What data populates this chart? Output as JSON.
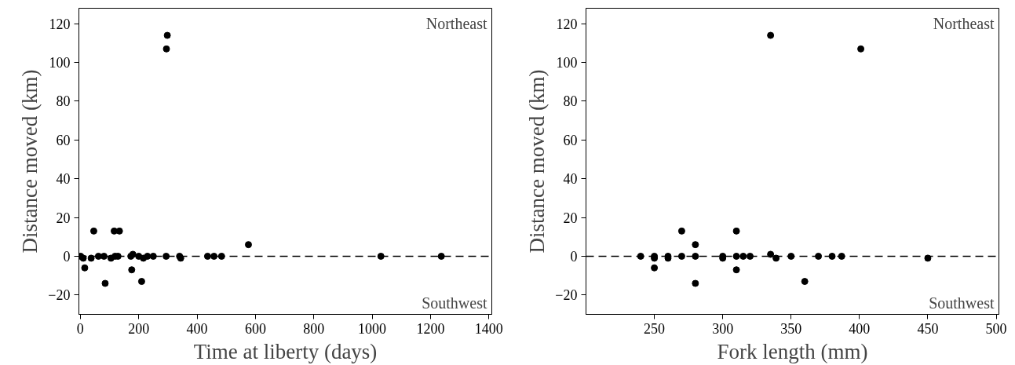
{
  "chart_data": [
    {
      "type": "scatter",
      "xlabel": "Time at liberty (days)",
      "ylabel": "Distance moved (km)",
      "x": [
        1,
        10,
        15,
        37,
        46,
        62,
        81,
        105,
        119,
        129,
        85,
        116,
        134,
        173,
        180,
        176,
        200,
        210,
        216,
        230,
        250,
        294,
        298,
        295,
        340,
        344,
        436,
        458,
        484,
        576,
        1030,
        1237
      ],
      "values": [
        0,
        -1,
        -6,
        -1,
        13,
        0,
        0,
        -1,
        0,
        0,
        -14,
        13,
        13,
        0,
        1,
        -7,
        0,
        -13,
        -1,
        0,
        0,
        0,
        114,
        107,
        0,
        -1,
        0,
        0,
        0,
        6,
        0,
        0
      ],
      "color": "#000000",
      "marker": "circle",
      "grid": false,
      "xlim": [
        -5,
        1410
      ],
      "ylim": [
        -30,
        128
      ],
      "xticks": [
        0,
        200,
        400,
        600,
        800,
        1000,
        1200,
        1400
      ],
      "yticks": [
        -20,
        0,
        20,
        40,
        60,
        80,
        100,
        120
      ],
      "ref_lines": [
        {
          "axis": "y",
          "value": 0,
          "line_style": "dashed",
          "color": "#000000"
        }
      ],
      "annotations": [
        "Northeast",
        "Southwest"
      ]
    },
    {
      "type": "scatter",
      "xlabel": "Fork length (mm)",
      "ylabel": "Distance moved (km)",
      "x": [
        240,
        250,
        250,
        250,
        260,
        260,
        270,
        270,
        280,
        280,
        280,
        300,
        300,
        310,
        310,
        310,
        315,
        320,
        335,
        335,
        339,
        350,
        360,
        370,
        380,
        387,
        401,
        450
      ],
      "values": [
        0,
        0,
        -1,
        -6,
        0,
        -1,
        13,
        0,
        6,
        0,
        -14,
        0,
        -1,
        13,
        0,
        -7,
        0,
        0,
        114,
        1,
        -1,
        0,
        -13,
        0,
        0,
        0,
        107,
        -1
      ],
      "color": "#000000",
      "marker": "circle",
      "grid": false,
      "xlim": [
        200,
        502
      ],
      "ylim": [
        -30,
        128
      ],
      "xticks": [
        250,
        300,
        350,
        400,
        450,
        500
      ],
      "yticks": [
        -20,
        0,
        20,
        40,
        60,
        80,
        100,
        120
      ],
      "ref_lines": [
        {
          "axis": "y",
          "value": 0,
          "line_style": "dashed",
          "color": "#000000"
        }
      ],
      "annotations": [
        "Northeast",
        "Southwest"
      ]
    }
  ]
}
